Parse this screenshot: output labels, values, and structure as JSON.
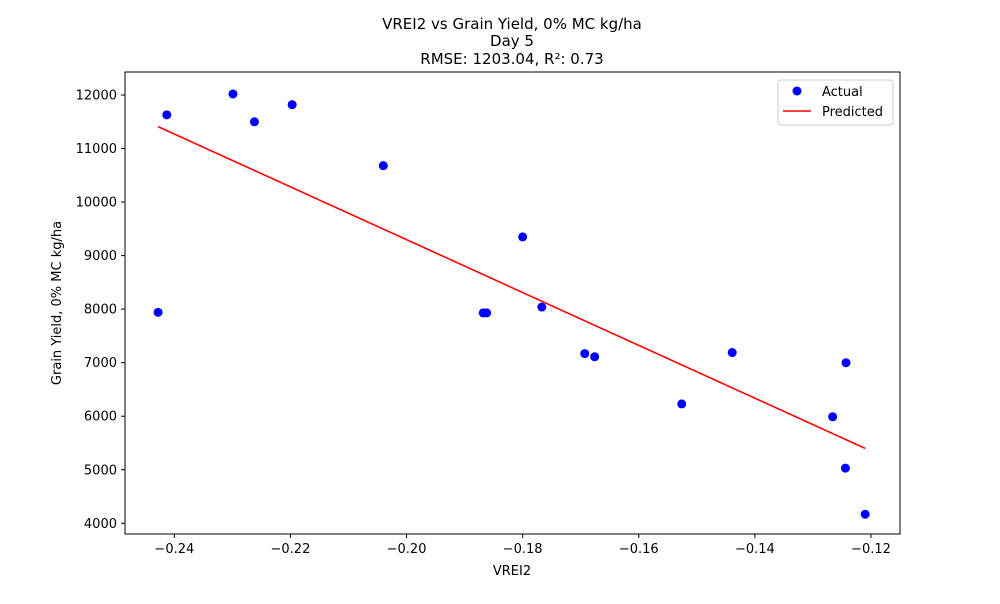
{
  "chart_data": {
    "type": "scatter",
    "title_lines": [
      "VREI2 vs Grain Yield, 0% MC kg/ha",
      "Day 5",
      "RMSE: 1203.04, R²: 0.73"
    ],
    "xlabel": "VREI2",
    "ylabel": "Grain Yield, 0% MC kg/ha",
    "xlim": [
      -0.2485,
      -0.115
    ],
    "ylim": [
      3800,
      12430
    ],
    "xticks": [
      -0.24,
      -0.22,
      -0.2,
      -0.18,
      -0.16,
      -0.14,
      -0.12
    ],
    "xtick_labels": [
      "−0.24",
      "−0.22",
      "−0.20",
      "−0.18",
      "−0.16",
      "−0.14",
      "−0.12"
    ],
    "yticks": [
      4000,
      5000,
      6000,
      7000,
      8000,
      9000,
      10000,
      11000,
      12000
    ],
    "ytick_labels": [
      "4000",
      "5000",
      "6000",
      "7000",
      "8000",
      "9000",
      "10000",
      "11000",
      "12000"
    ],
    "grid": false,
    "legend_position": "top-right",
    "series": [
      {
        "name": "Actual",
        "kind": "scatter",
        "color": "#0000ff",
        "points": [
          [
            -0.2428,
            7940
          ],
          [
            -0.2413,
            11630
          ],
          [
            -0.2299,
            12020
          ],
          [
            -0.2262,
            11500
          ],
          [
            -0.2197,
            11820
          ],
          [
            -0.204,
            10680
          ],
          [
            -0.1868,
            7930
          ],
          [
            -0.1862,
            7930
          ],
          [
            -0.18,
            9350
          ],
          [
            -0.1767,
            8040
          ],
          [
            -0.1693,
            7170
          ],
          [
            -0.1676,
            7110
          ],
          [
            -0.1526,
            6230
          ],
          [
            -0.1439,
            7190
          ],
          [
            -0.1266,
            5990
          ],
          [
            -0.1243,
            7000
          ],
          [
            -0.1244,
            5030
          ],
          [
            -0.121,
            4170
          ]
        ]
      },
      {
        "name": "Predicted",
        "kind": "line",
        "color": "#ff0000",
        "points": [
          [
            -0.2428,
            11410
          ],
          [
            -0.121,
            5400
          ]
        ]
      }
    ]
  }
}
